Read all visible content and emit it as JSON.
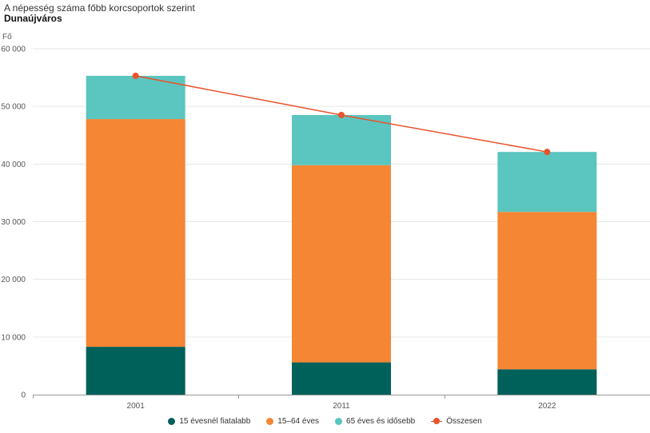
{
  "header": {
    "title": "A népesség száma főbb korcsoportok szerint",
    "subtitle": "Dunaújváros"
  },
  "chart_data": {
    "type": "bar",
    "stacked": true,
    "unit_label": "Fő",
    "categories": [
      "2001",
      "2011",
      "2022"
    ],
    "ylim": [
      0,
      60000
    ],
    "yticks": [
      0,
      10000,
      20000,
      30000,
      40000,
      50000,
      60000
    ],
    "ytick_labels": [
      "0",
      "10 000",
      "20 000",
      "30 000",
      "40 000",
      "50 000",
      "60 000"
    ],
    "grid": true,
    "legend_position": "bottom",
    "series": [
      {
        "name": "15 évesnél fiatalabb",
        "values": [
          8300,
          5600,
          4400
        ],
        "color": "#00605a",
        "kind": "bar"
      },
      {
        "name": "15–64 éves",
        "values": [
          39500,
          34200,
          27300
        ],
        "color": "#f58634",
        "kind": "bar"
      },
      {
        "name": "65 éves és idősebb",
        "values": [
          7500,
          8700,
          10400
        ],
        "color": "#5bc5bf",
        "kind": "bar"
      },
      {
        "name": "Összesen",
        "values": [
          55300,
          48500,
          42100
        ],
        "color": "#e8532b",
        "kind": "line"
      }
    ]
  }
}
